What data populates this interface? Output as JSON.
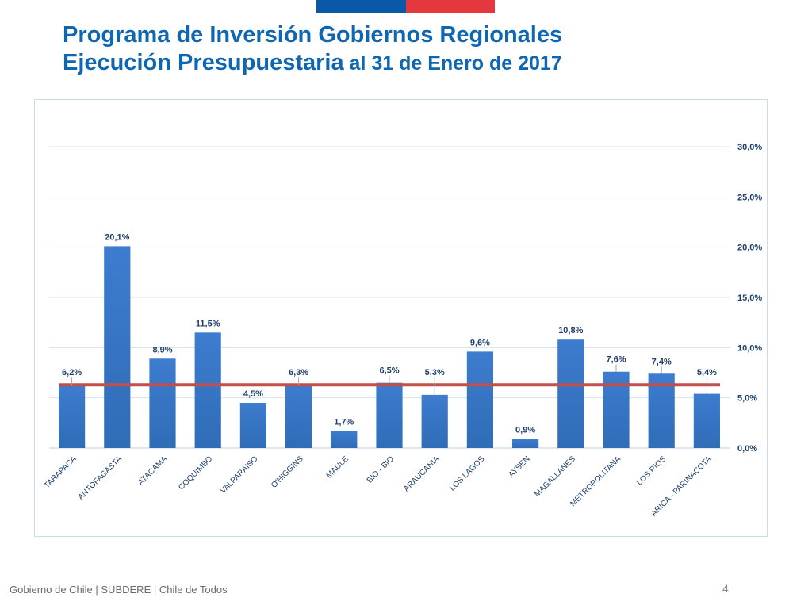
{
  "header": {
    "title_line1": "Programa de Inversión Gobiernos Regionales",
    "title_line2_bold": "Ejecución Presupuestaria",
    "title_line2_rest": " al 31 de Enero de 2017"
  },
  "chart_data": {
    "type": "bar",
    "categories": [
      "TARAPACA",
      "ANTOFAGASTA",
      "ATACAMA",
      "COQUIMBO",
      "VALPARAISO",
      "O'HIGGINS",
      "MAULE",
      "BIO - BIO",
      "ARAUCANIA",
      "LOS LAGOS",
      "AYSEN",
      "MAGALLANES",
      "METROPOLITANA",
      "LOS RIOS",
      "ARICA - PARINACOTA"
    ],
    "values": [
      6.2,
      20.1,
      8.9,
      11.5,
      4.5,
      6.3,
      1.7,
      6.5,
      5.3,
      9.6,
      0.9,
      10.8,
      7.6,
      7.4,
      5.4
    ],
    "value_labels": [
      "6,2%",
      "20,1%",
      "8,9%",
      "11,5%",
      "4,5%",
      "6,3%",
      "1,7%",
      "6,5%",
      "5,3%",
      "9,6%",
      "0,9%",
      "10,8%",
      "7,6%",
      "7,4%",
      "5,4%"
    ],
    "ylim": [
      0,
      30
    ],
    "yticks": [
      0,
      5,
      10,
      15,
      20,
      25,
      30
    ],
    "ytick_labels": [
      "0,0%",
      "5,0%",
      "10,0%",
      "15,0%",
      "20,0%",
      "25,0%",
      "30,0%"
    ],
    "yaxis_position": "right",
    "reference_line": 6.3,
    "bar_color": "#2f6db7",
    "bar_color_light": "#3d7ccf",
    "reference_line_color": "#c0504d",
    "grid": true,
    "title": "",
    "xlabel": "",
    "ylabel": ""
  },
  "footer": {
    "text": "Gobierno de Chile | SUBDERE | Chile de Todos",
    "page_number": "4"
  }
}
